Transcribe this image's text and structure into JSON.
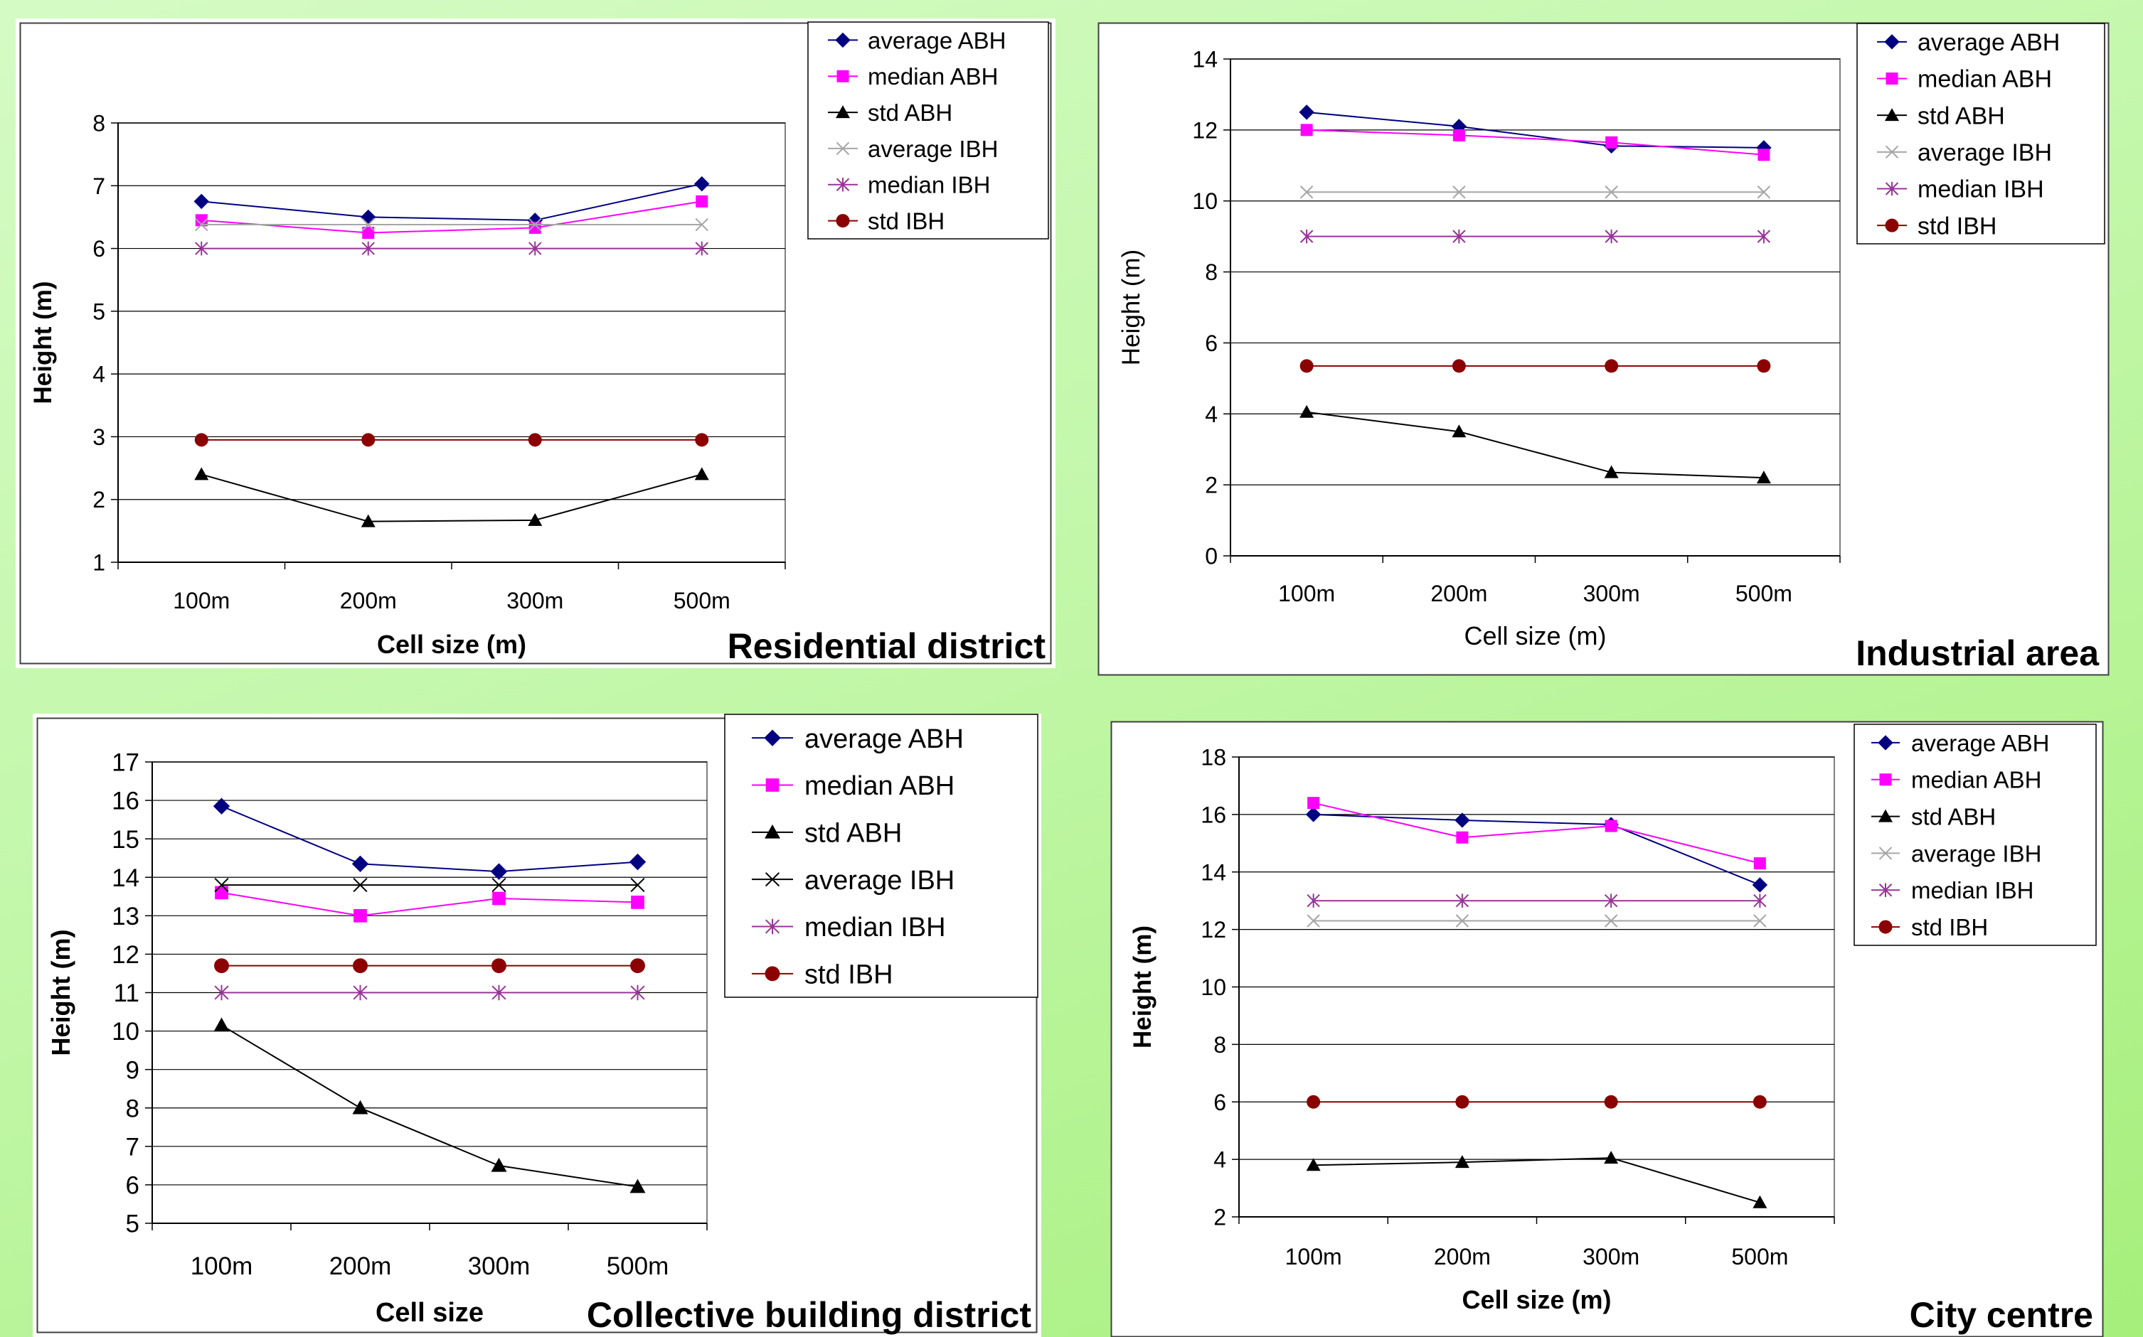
{
  "chart_data": [
    {
      "type": "line",
      "title": "Residential district",
      "xlabel": "Cell size (m)",
      "ylabel": "Height (m)",
      "categories": [
        "100m",
        "200m",
        "300m",
        "500m"
      ],
      "ylim": [
        1,
        8
      ],
      "yticks": [
        1,
        2,
        3,
        4,
        5,
        6,
        7,
        8
      ],
      "grid": true,
      "legend_position": "top-right",
      "series": [
        {
          "name": "average ABH",
          "values": [
            6.75,
            6.5,
            6.45,
            7.03
          ],
          "color": "#000080",
          "marker": "diamond"
        },
        {
          "name": "median ABH",
          "values": [
            6.45,
            6.25,
            6.33,
            6.75
          ],
          "color": "#ff00ff",
          "marker": "square"
        },
        {
          "name": "std ABH",
          "values": [
            2.4,
            1.65,
            1.67,
            2.4
          ],
          "color": "#000000",
          "marker": "triangle"
        },
        {
          "name": "average IBH",
          "values": [
            6.38,
            6.38,
            6.38,
            6.38
          ],
          "color": "#a6a6a6",
          "marker": "x"
        },
        {
          "name": "median IBH",
          "values": [
            6.0,
            6.0,
            6.0,
            6.0
          ],
          "color": "#993399",
          "marker": "star"
        },
        {
          "name": "std IBH",
          "values": [
            2.95,
            2.95,
            2.95,
            2.95
          ],
          "color": "#8b0000",
          "marker": "circle"
        }
      ]
    },
    {
      "type": "line",
      "title": "Industrial area",
      "xlabel": "Cell size (m)",
      "ylabel": "Height (m)",
      "categories": [
        "100m",
        "200m",
        "300m",
        "500m"
      ],
      "ylim": [
        0,
        14
      ],
      "yticks": [
        0,
        2,
        4,
        6,
        8,
        10,
        12,
        14
      ],
      "grid": true,
      "legend_position": "top-right",
      "series": [
        {
          "name": "average ABH",
          "values": [
            12.5,
            12.1,
            11.55,
            11.5
          ],
          "color": "#000080",
          "marker": "diamond"
        },
        {
          "name": "median ABH",
          "values": [
            12.0,
            11.85,
            11.65,
            11.3
          ],
          "color": "#ff00ff",
          "marker": "square"
        },
        {
          "name": "std ABH",
          "values": [
            4.05,
            3.5,
            2.35,
            2.2
          ],
          "color": "#000000",
          "marker": "triangle"
        },
        {
          "name": "average IBH",
          "values": [
            10.25,
            10.25,
            10.25,
            10.25
          ],
          "color": "#a6a6a6",
          "marker": "x"
        },
        {
          "name": "median IBH",
          "values": [
            9.0,
            9.0,
            9.0,
            9.0
          ],
          "color": "#993399",
          "marker": "star"
        },
        {
          "name": "std IBH",
          "values": [
            5.35,
            5.35,
            5.35,
            5.35
          ],
          "color": "#8b0000",
          "marker": "circle"
        }
      ]
    },
    {
      "type": "line",
      "title": "Collective building district",
      "xlabel": "Cell size",
      "ylabel": "Height (m)",
      "categories": [
        "100m",
        "200m",
        "300m",
        "500m"
      ],
      "ylim": [
        5,
        17
      ],
      "yticks": [
        5,
        6,
        7,
        8,
        9,
        10,
        11,
        12,
        13,
        14,
        15,
        16,
        17
      ],
      "grid": true,
      "legend_position": "top-right",
      "series": [
        {
          "name": "average ABH",
          "values": [
            15.85,
            14.35,
            14.15,
            14.4
          ],
          "color": "#000080",
          "marker": "diamond"
        },
        {
          "name": "median ABH",
          "values": [
            13.6,
            13.0,
            13.45,
            13.35
          ],
          "color": "#ff00ff",
          "marker": "square"
        },
        {
          "name": "std ABH",
          "values": [
            10.15,
            8.0,
            6.5,
            5.95
          ],
          "color": "#000000",
          "marker": "triangle"
        },
        {
          "name": "average IBH",
          "values": [
            13.8,
            13.8,
            13.8,
            13.8
          ],
          "color": "#000000",
          "marker": "x"
        },
        {
          "name": "median IBH",
          "values": [
            11.0,
            11.0,
            11.0,
            11.0
          ],
          "color": "#993399",
          "marker": "star"
        },
        {
          "name": "std IBH",
          "values": [
            11.7,
            11.7,
            11.7,
            11.7
          ],
          "color": "#8b0000",
          "marker": "circle"
        }
      ]
    },
    {
      "type": "line",
      "title": "City centre",
      "xlabel": "Cell size (m)",
      "ylabel": "Height (m)",
      "categories": [
        "100m",
        "200m",
        "300m",
        "500m"
      ],
      "ylim": [
        2,
        18
      ],
      "yticks": [
        2,
        4,
        6,
        8,
        10,
        12,
        14,
        16,
        18
      ],
      "grid": true,
      "legend_position": "top-right",
      "series": [
        {
          "name": "average ABH",
          "values": [
            16.0,
            15.8,
            15.65,
            13.55
          ],
          "color": "#000080",
          "marker": "diamond"
        },
        {
          "name": "median ABH",
          "values": [
            16.4,
            15.2,
            15.6,
            14.3
          ],
          "color": "#ff00ff",
          "marker": "square"
        },
        {
          "name": "std ABH",
          "values": [
            3.8,
            3.9,
            4.05,
            2.5
          ],
          "color": "#000000",
          "marker": "triangle"
        },
        {
          "name": "average IBH",
          "values": [
            12.3,
            12.3,
            12.3,
            12.3
          ],
          "color": "#a6a6a6",
          "marker": "x"
        },
        {
          "name": "median IBH",
          "values": [
            13.0,
            13.0,
            13.0,
            13.0
          ],
          "color": "#993399",
          "marker": "star"
        },
        {
          "name": "std IBH",
          "values": [
            6.0,
            6.0,
            6.0,
            6.0
          ],
          "color": "#8b0000",
          "marker": "circle"
        }
      ]
    }
  ]
}
